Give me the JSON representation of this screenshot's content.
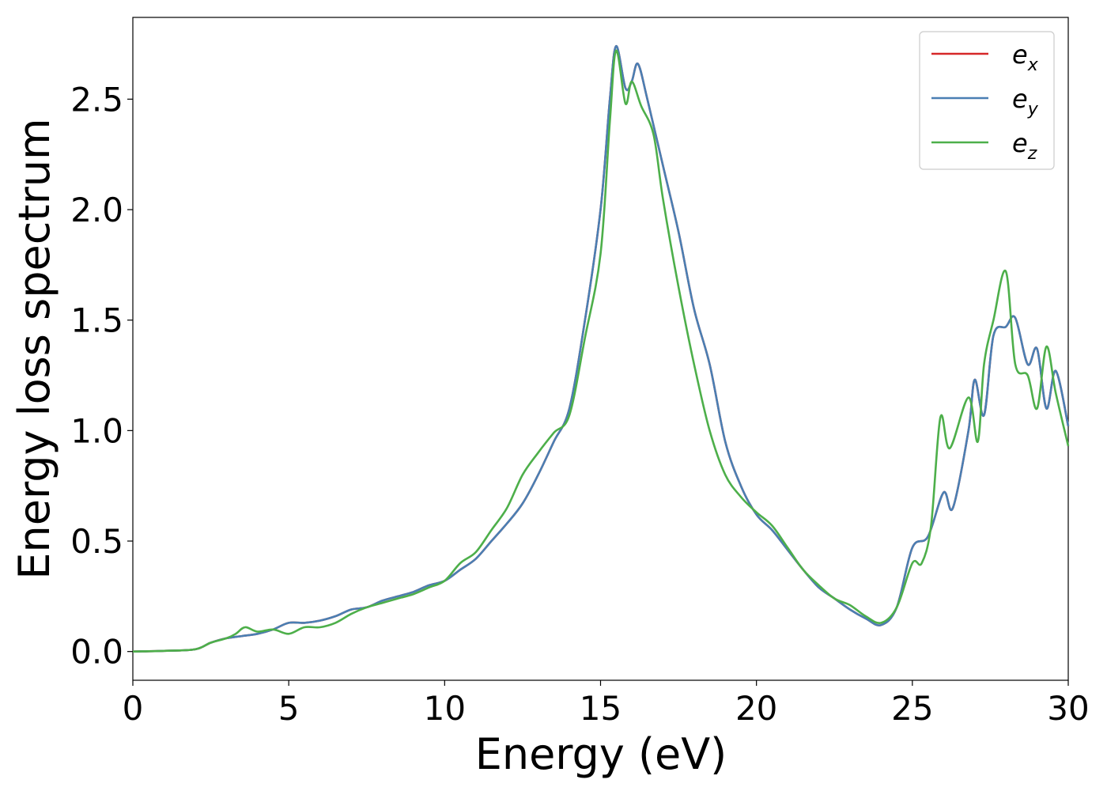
{
  "chart_data": {
    "type": "line",
    "title": "",
    "xlabel": "Energy (eV)",
    "ylabel": "Energy loss spectrum",
    "xlim": [
      0,
      30
    ],
    "ylim": [
      -0.13,
      2.87
    ],
    "xticks": [
      0,
      5,
      10,
      15,
      20,
      25,
      30
    ],
    "xtick_labels": [
      "0",
      "5",
      "10",
      "15",
      "20",
      "25",
      "30"
    ],
    "yticks": [
      0.0,
      0.5,
      1.0,
      1.5,
      2.0,
      2.5
    ],
    "ytick_labels": [
      "0.0",
      "0.5",
      "1.0",
      "1.5",
      "2.0",
      "2.5"
    ],
    "grid": false,
    "legend_position": "top-right",
    "series": [
      {
        "name": "e_x",
        "legend_base": "e",
        "legend_sub": "x",
        "color": "#d62728",
        "x": [
          0,
          1,
          2,
          2.5,
          3,
          3.5,
          4,
          4.5,
          5,
          5.5,
          6,
          6.5,
          7,
          7.5,
          8,
          8.5,
          9,
          9.5,
          10,
          10.5,
          11,
          11.5,
          12,
          12.5,
          13,
          13.5,
          14,
          14.5,
          15,
          15.3,
          15.5,
          15.8,
          16.0,
          16.2,
          16.5,
          17,
          17.5,
          18,
          18.5,
          19,
          19.5,
          20,
          20.5,
          21,
          21.5,
          22,
          22.5,
          23,
          23.5,
          24,
          24.5,
          25,
          25.5,
          26,
          26.3,
          26.8,
          27,
          27.3,
          27.6,
          28,
          28.3,
          28.7,
          29,
          29.3,
          29.6,
          30
        ],
        "y": [
          0.0,
          0.003,
          0.01,
          0.04,
          0.06,
          0.07,
          0.08,
          0.1,
          0.13,
          0.13,
          0.14,
          0.16,
          0.19,
          0.2,
          0.23,
          0.25,
          0.27,
          0.3,
          0.32,
          0.37,
          0.42,
          0.5,
          0.58,
          0.67,
          0.8,
          0.95,
          1.1,
          1.5,
          2.0,
          2.5,
          2.74,
          2.55,
          2.58,
          2.66,
          2.5,
          2.2,
          1.9,
          1.55,
          1.3,
          0.95,
          0.75,
          0.62,
          0.55,
          0.46,
          0.37,
          0.29,
          0.24,
          0.19,
          0.15,
          0.12,
          0.2,
          0.47,
          0.52,
          0.72,
          0.65,
          1.0,
          1.23,
          1.07,
          1.43,
          1.47,
          1.51,
          1.3,
          1.37,
          1.1,
          1.27,
          1.02
        ]
      },
      {
        "name": "e_y",
        "legend_base": "e",
        "legend_sub": "y",
        "color": "#4a7fb3",
        "x": [
          0,
          1,
          2,
          2.5,
          3,
          3.5,
          4,
          4.5,
          5,
          5.5,
          6,
          6.5,
          7,
          7.5,
          8,
          8.5,
          9,
          9.5,
          10,
          10.5,
          11,
          11.5,
          12,
          12.5,
          13,
          13.5,
          14,
          14.5,
          15,
          15.3,
          15.5,
          15.8,
          16.0,
          16.2,
          16.5,
          17,
          17.5,
          18,
          18.5,
          19,
          19.5,
          20,
          20.5,
          21,
          21.5,
          22,
          22.5,
          23,
          23.5,
          24,
          24.5,
          25,
          25.5,
          26,
          26.3,
          26.8,
          27,
          27.3,
          27.6,
          28,
          28.3,
          28.7,
          29,
          29.3,
          29.6,
          30
        ],
        "y": [
          0.0,
          0.003,
          0.01,
          0.04,
          0.06,
          0.07,
          0.08,
          0.1,
          0.13,
          0.13,
          0.14,
          0.16,
          0.19,
          0.2,
          0.23,
          0.25,
          0.27,
          0.3,
          0.32,
          0.37,
          0.42,
          0.5,
          0.58,
          0.67,
          0.8,
          0.95,
          1.1,
          1.5,
          2.0,
          2.5,
          2.74,
          2.55,
          2.58,
          2.66,
          2.5,
          2.2,
          1.9,
          1.55,
          1.3,
          0.95,
          0.75,
          0.62,
          0.55,
          0.46,
          0.37,
          0.29,
          0.24,
          0.19,
          0.15,
          0.12,
          0.2,
          0.47,
          0.52,
          0.72,
          0.65,
          1.0,
          1.23,
          1.07,
          1.43,
          1.47,
          1.51,
          1.3,
          1.37,
          1.1,
          1.27,
          1.02
        ]
      },
      {
        "name": "e_z",
        "legend_base": "e",
        "legend_sub": "z",
        "color": "#4daf4a",
        "x": [
          0,
          1,
          2,
          2.5,
          3,
          3.3,
          3.6,
          4,
          4.5,
          5,
          5.5,
          6,
          6.5,
          7,
          7.5,
          8,
          8.5,
          9,
          9.5,
          10,
          10.5,
          11,
          11.5,
          12,
          12.5,
          13,
          13.5,
          14,
          14.5,
          15,
          15.3,
          15.5,
          15.8,
          16.0,
          16.3,
          16.7,
          17,
          17.5,
          18,
          18.5,
          19,
          19.5,
          20,
          20.5,
          21,
          21.5,
          22,
          22.5,
          23,
          23.5,
          24,
          24.5,
          25,
          25.3,
          25.6,
          25.9,
          26.2,
          26.8,
          27.1,
          27.3,
          27.6,
          28,
          28.3,
          28.7,
          29,
          29.3,
          29.6,
          30
        ],
        "y": [
          0.0,
          0.003,
          0.01,
          0.04,
          0.06,
          0.08,
          0.11,
          0.09,
          0.1,
          0.08,
          0.11,
          0.11,
          0.13,
          0.17,
          0.2,
          0.22,
          0.24,
          0.26,
          0.29,
          0.32,
          0.4,
          0.45,
          0.55,
          0.65,
          0.8,
          0.9,
          0.99,
          1.07,
          1.42,
          1.8,
          2.4,
          2.72,
          2.48,
          2.58,
          2.47,
          2.34,
          2.05,
          1.65,
          1.3,
          1.0,
          0.8,
          0.7,
          0.63,
          0.57,
          0.47,
          0.37,
          0.3,
          0.24,
          0.21,
          0.16,
          0.13,
          0.2,
          0.4,
          0.4,
          0.57,
          1.06,
          0.92,
          1.15,
          0.95,
          1.3,
          1.5,
          1.72,
          1.3,
          1.25,
          1.1,
          1.38,
          1.17,
          0.93
        ]
      }
    ]
  }
}
